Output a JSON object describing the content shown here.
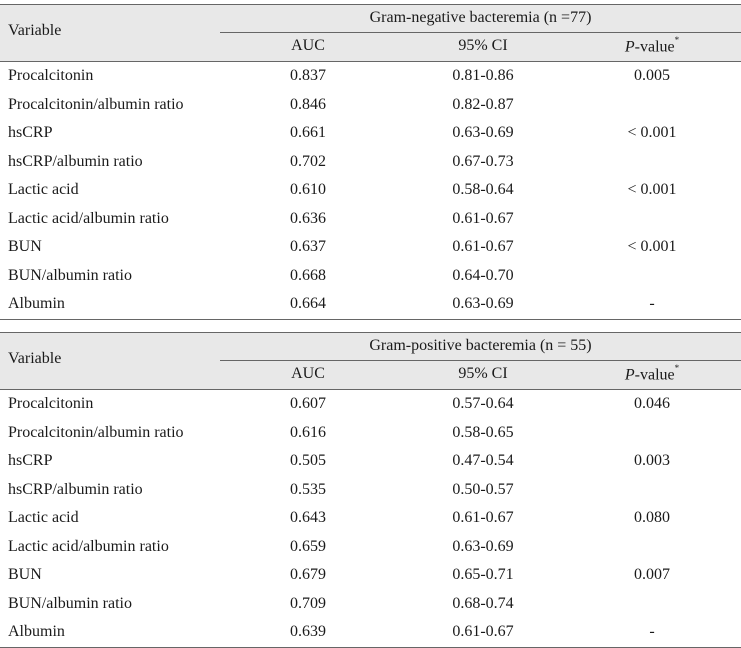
{
  "tables": [
    {
      "header": {
        "variable_label": "Variable",
        "group_title": "Gram-negative bacteremia (n =77)",
        "col_auc": "AUC",
        "col_ci": "95% CI",
        "col_p_italic": "P",
        "col_p_rest": "-value",
        "col_p_sup": "*"
      },
      "rows": [
        {
          "variable": "Procalcitonin",
          "auc": "0.837",
          "ci": "0.81-0.86",
          "p": "0.005"
        },
        {
          "variable": "Procalcitonin/albumin ratio",
          "auc": "0.846",
          "ci": "0.82-0.87",
          "p": ""
        },
        {
          "variable": "hsCRP",
          "auc": "0.661",
          "ci": "0.63-0.69",
          "p": "< 0.001"
        },
        {
          "variable": "hsCRP/albumin ratio",
          "auc": "0.702",
          "ci": "0.67-0.73",
          "p": ""
        },
        {
          "variable": "Lactic acid",
          "auc": "0.610",
          "ci": "0.58-0.64",
          "p": "< 0.001"
        },
        {
          "variable": "Lactic acid/albumin ratio",
          "auc": "0.636",
          "ci": "0.61-0.67",
          "p": ""
        },
        {
          "variable": "BUN",
          "auc": "0.637",
          "ci": "0.61-0.67",
          "p": "< 0.001"
        },
        {
          "variable": "BUN/albumin ratio",
          "auc": "0.668",
          "ci": "0.64-0.70",
          "p": ""
        },
        {
          "variable": "Albumin",
          "auc": "0.664",
          "ci": "0.63-0.69",
          "p": "-"
        }
      ]
    },
    {
      "header": {
        "variable_label": "Variable",
        "group_title": "Gram-positive bacteremia (n = 55)",
        "col_auc": "AUC",
        "col_ci": "95% CI",
        "col_p_italic": "P",
        "col_p_rest": "-value",
        "col_p_sup": "*"
      },
      "rows": [
        {
          "variable": "Procalcitonin",
          "auc": "0.607",
          "ci": "0.57-0.64",
          "p": "0.046"
        },
        {
          "variable": "Procalcitonin/albumin ratio",
          "auc": "0.616",
          "ci": "0.58-0.65",
          "p": ""
        },
        {
          "variable": "hsCRP",
          "auc": "0.505",
          "ci": "0.47-0.54",
          "p": "0.003"
        },
        {
          "variable": "hsCRP/albumin ratio",
          "auc": "0.535",
          "ci": "0.50-0.57",
          "p": ""
        },
        {
          "variable": "Lactic acid",
          "auc": "0.643",
          "ci": "0.61-0.67",
          "p": "0.080"
        },
        {
          "variable": "Lactic acid/albumin ratio",
          "auc": "0.659",
          "ci": "0.63-0.69",
          "p": ""
        },
        {
          "variable": "BUN",
          "auc": "0.679",
          "ci": "0.65-0.71",
          "p": "0.007"
        },
        {
          "variable": "BUN/albumin ratio",
          "auc": "0.709",
          "ci": "0.68-0.74",
          "p": ""
        },
        {
          "variable": "Albumin",
          "auc": "0.639",
          "ci": "0.61-0.67",
          "p": "-"
        }
      ]
    }
  ]
}
